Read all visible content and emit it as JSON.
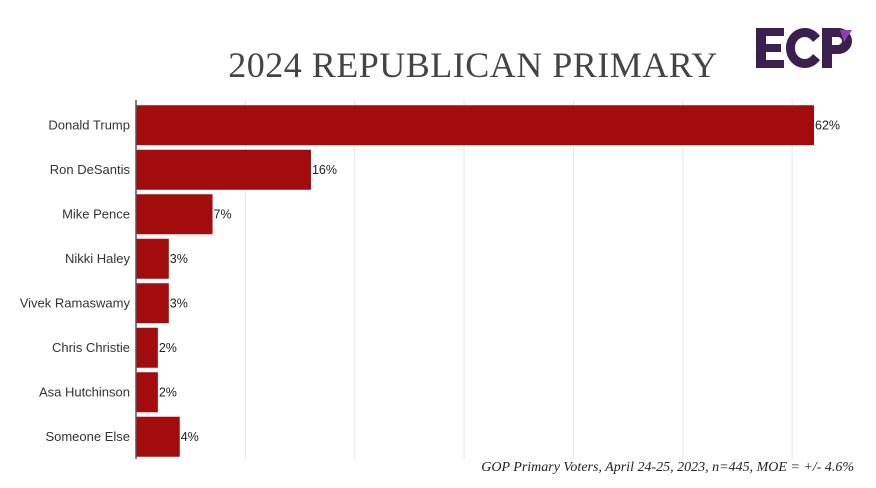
{
  "chart_data": {
    "type": "bar",
    "orientation": "horizontal",
    "title": "2024 REPUBLICAN PRIMARY",
    "categories": [
      "Donald Trump",
      "Ron DeSantis",
      "Mike Pence",
      "Nikki Haley",
      "Vivek Ramaswamy",
      "Chris Christie",
      "Asa Hutchinson",
      "Someone Else"
    ],
    "values": [
      62,
      16,
      7,
      3,
      3,
      2,
      2,
      4
    ],
    "data_labels": [
      "62%",
      "16%",
      "7%",
      "3%",
      "3%",
      "2%",
      "2%",
      "4%"
    ],
    "xlim": [
      0,
      62
    ],
    "grid": true,
    "bar_color": "#a20c0c",
    "gridline_color": "#e6e6e6",
    "axis_color": "#555555"
  },
  "source_note": "GOP Primary Voters, April 24-25, 2023, n=445, MOE = +/- 4.6%",
  "logo": {
    "text": "ECP",
    "icon": "ecp-logo-icon",
    "color": "#3b1f4f"
  }
}
